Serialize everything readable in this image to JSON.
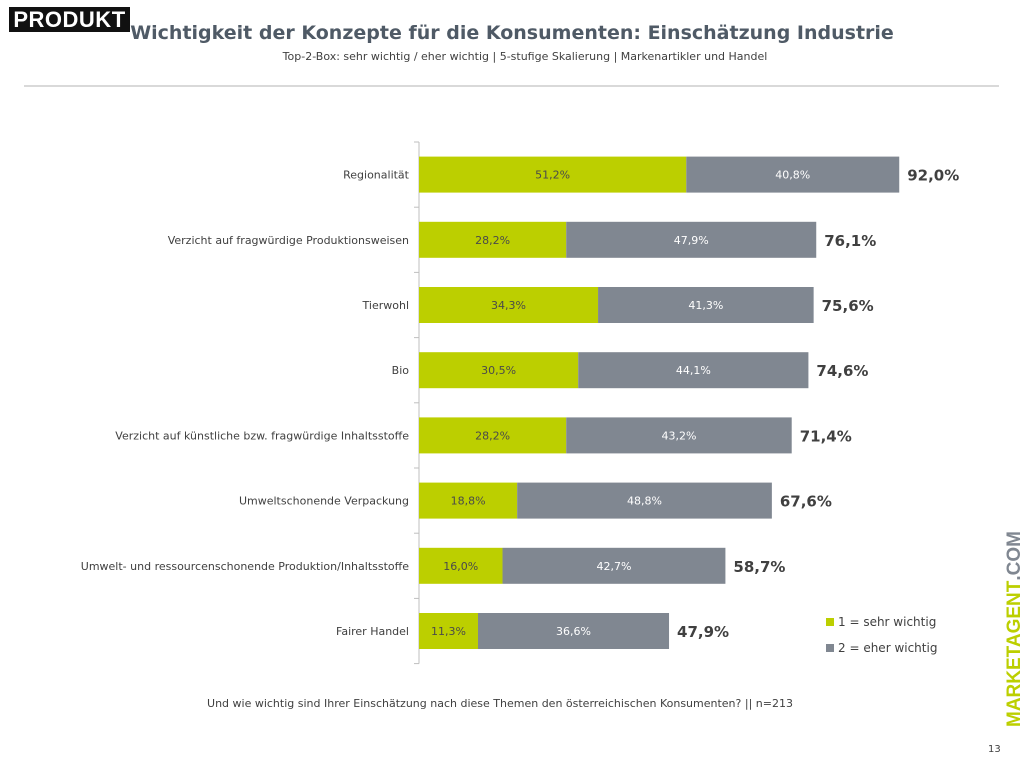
{
  "logo": "PRODUKT",
  "title": "Wichtigkeit der Konzepte für die Konsumenten: Einschätzung Industrie",
  "subtitle": "Top-2-Box: sehr wichtig / eher wichtig | 5-stufige Skalierung | Markenartikler und Handel",
  "chart_data": {
    "type": "bar",
    "orientation": "horizontal",
    "stacked": true,
    "categories": [
      "Regionalität",
      "Verzicht auf fragwürdige Produktionsweisen",
      "Tierwohl",
      "Bio",
      "Verzicht auf künstliche bzw. fragwürdige Inhaltsstoffe",
      "Umweltschonende Verpackung",
      "Umwelt- und ressourcenschonende Produktion/Inhaltsstoffe",
      "Fairer Handel"
    ],
    "series": [
      {
        "name": "1 = sehr wichtig",
        "color": "#bccf00",
        "values": [
          51.2,
          28.2,
          34.3,
          30.5,
          28.2,
          18.8,
          16.0,
          11.3
        ],
        "labels": [
          "51,2%",
          "28,2%",
          "34,3%",
          "30,5%",
          "28,2%",
          "18,8%",
          "16,0%",
          "11,3%"
        ]
      },
      {
        "name": "2 = eher wichtig",
        "color": "#808791",
        "values": [
          40.8,
          47.9,
          41.3,
          44.1,
          43.2,
          48.8,
          42.7,
          36.6
        ],
        "labels": [
          "40,8%",
          "47,9%",
          "41,3%",
          "44,1%",
          "43,2%",
          "48,8%",
          "42,7%",
          "36,6%"
        ]
      }
    ],
    "totals": [
      "92,0%",
      "76,1%",
      "75,6%",
      "74,6%",
      "71,4%",
      "67,6%",
      "58,7%",
      "47,9%"
    ],
    "xlim": [
      0,
      100
    ],
    "grid": false,
    "legend": "bottom-right"
  },
  "question": "Und wie wichtig sind Ihrer Einschätzung nach diese Themen den österreichischen Konsumenten? || n=213",
  "brand": {
    "main": "MARKETAGENT",
    "suffix": ".COM"
  },
  "page_number": "13"
}
